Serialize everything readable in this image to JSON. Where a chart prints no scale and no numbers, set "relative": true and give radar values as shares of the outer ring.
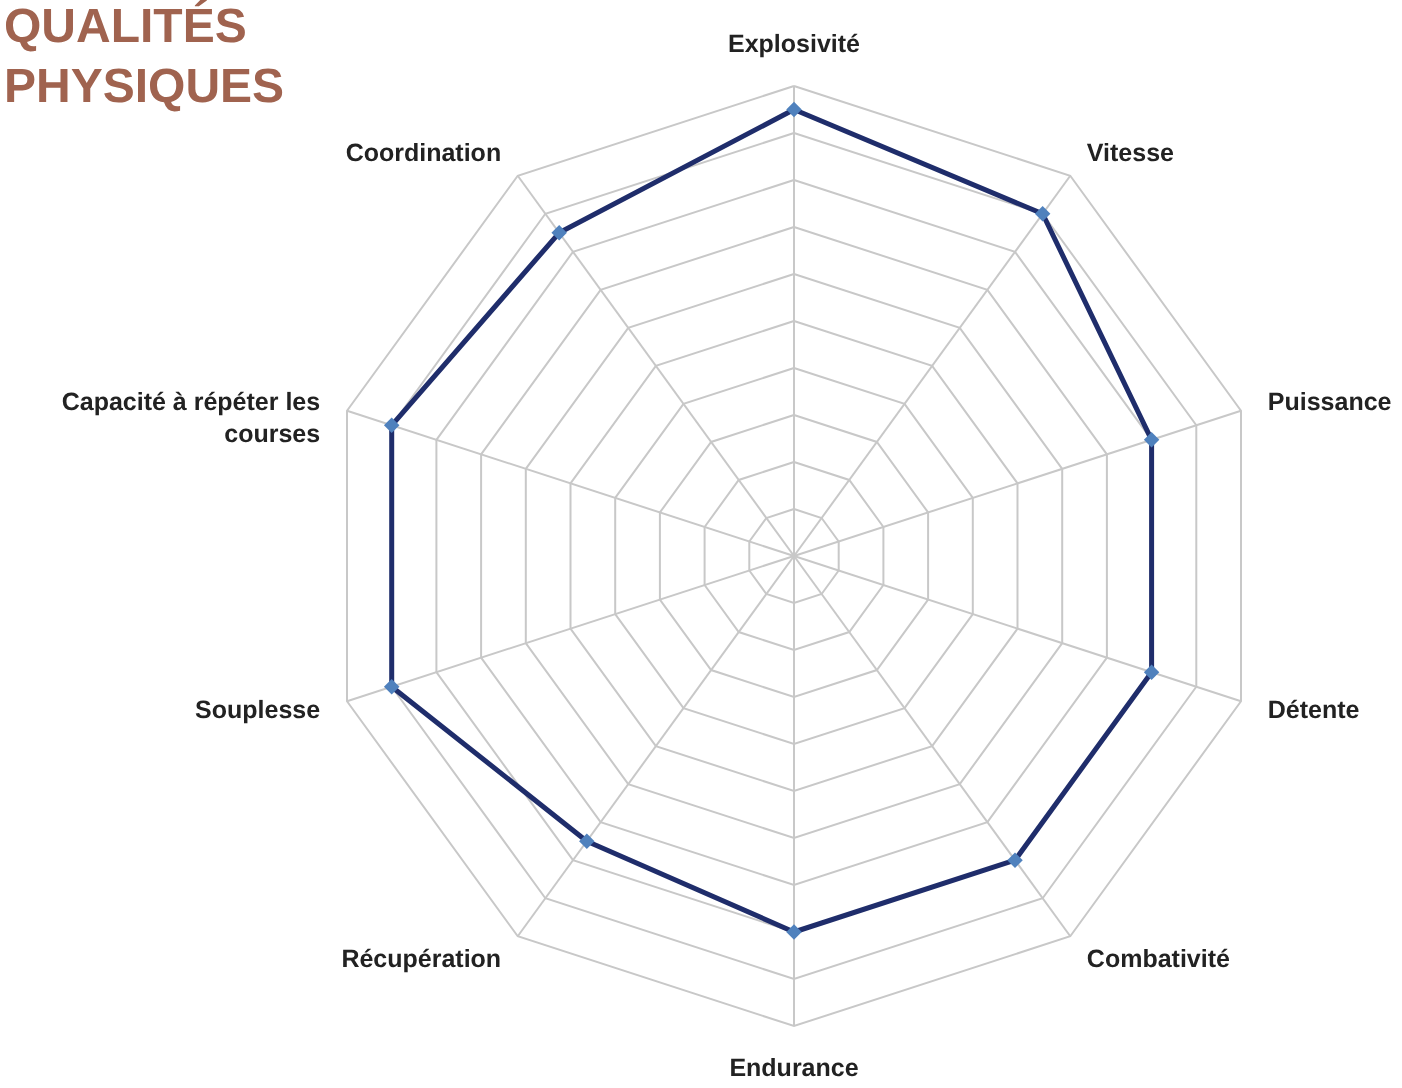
{
  "chart_data": {
    "type": "radar",
    "title": "QUALITÉS PHYSIQUES",
    "relative": true,
    "grid": true,
    "marker": "diamond",
    "categories": [
      "Explosivité",
      "Vitesse",
      "Puissance",
      "Détente",
      "Combativité",
      "Endurance",
      "Récupération",
      "Souplesse",
      "Capacité à répéter les courses",
      "Coordination"
    ],
    "series": [
      {
        "color": "#1f2d6b",
        "values": [
          0.95,
          0.9,
          0.8,
          0.8,
          0.8,
          0.8,
          0.75,
          0.9,
          0.9,
          0.85
        ]
      }
    ]
  }
}
